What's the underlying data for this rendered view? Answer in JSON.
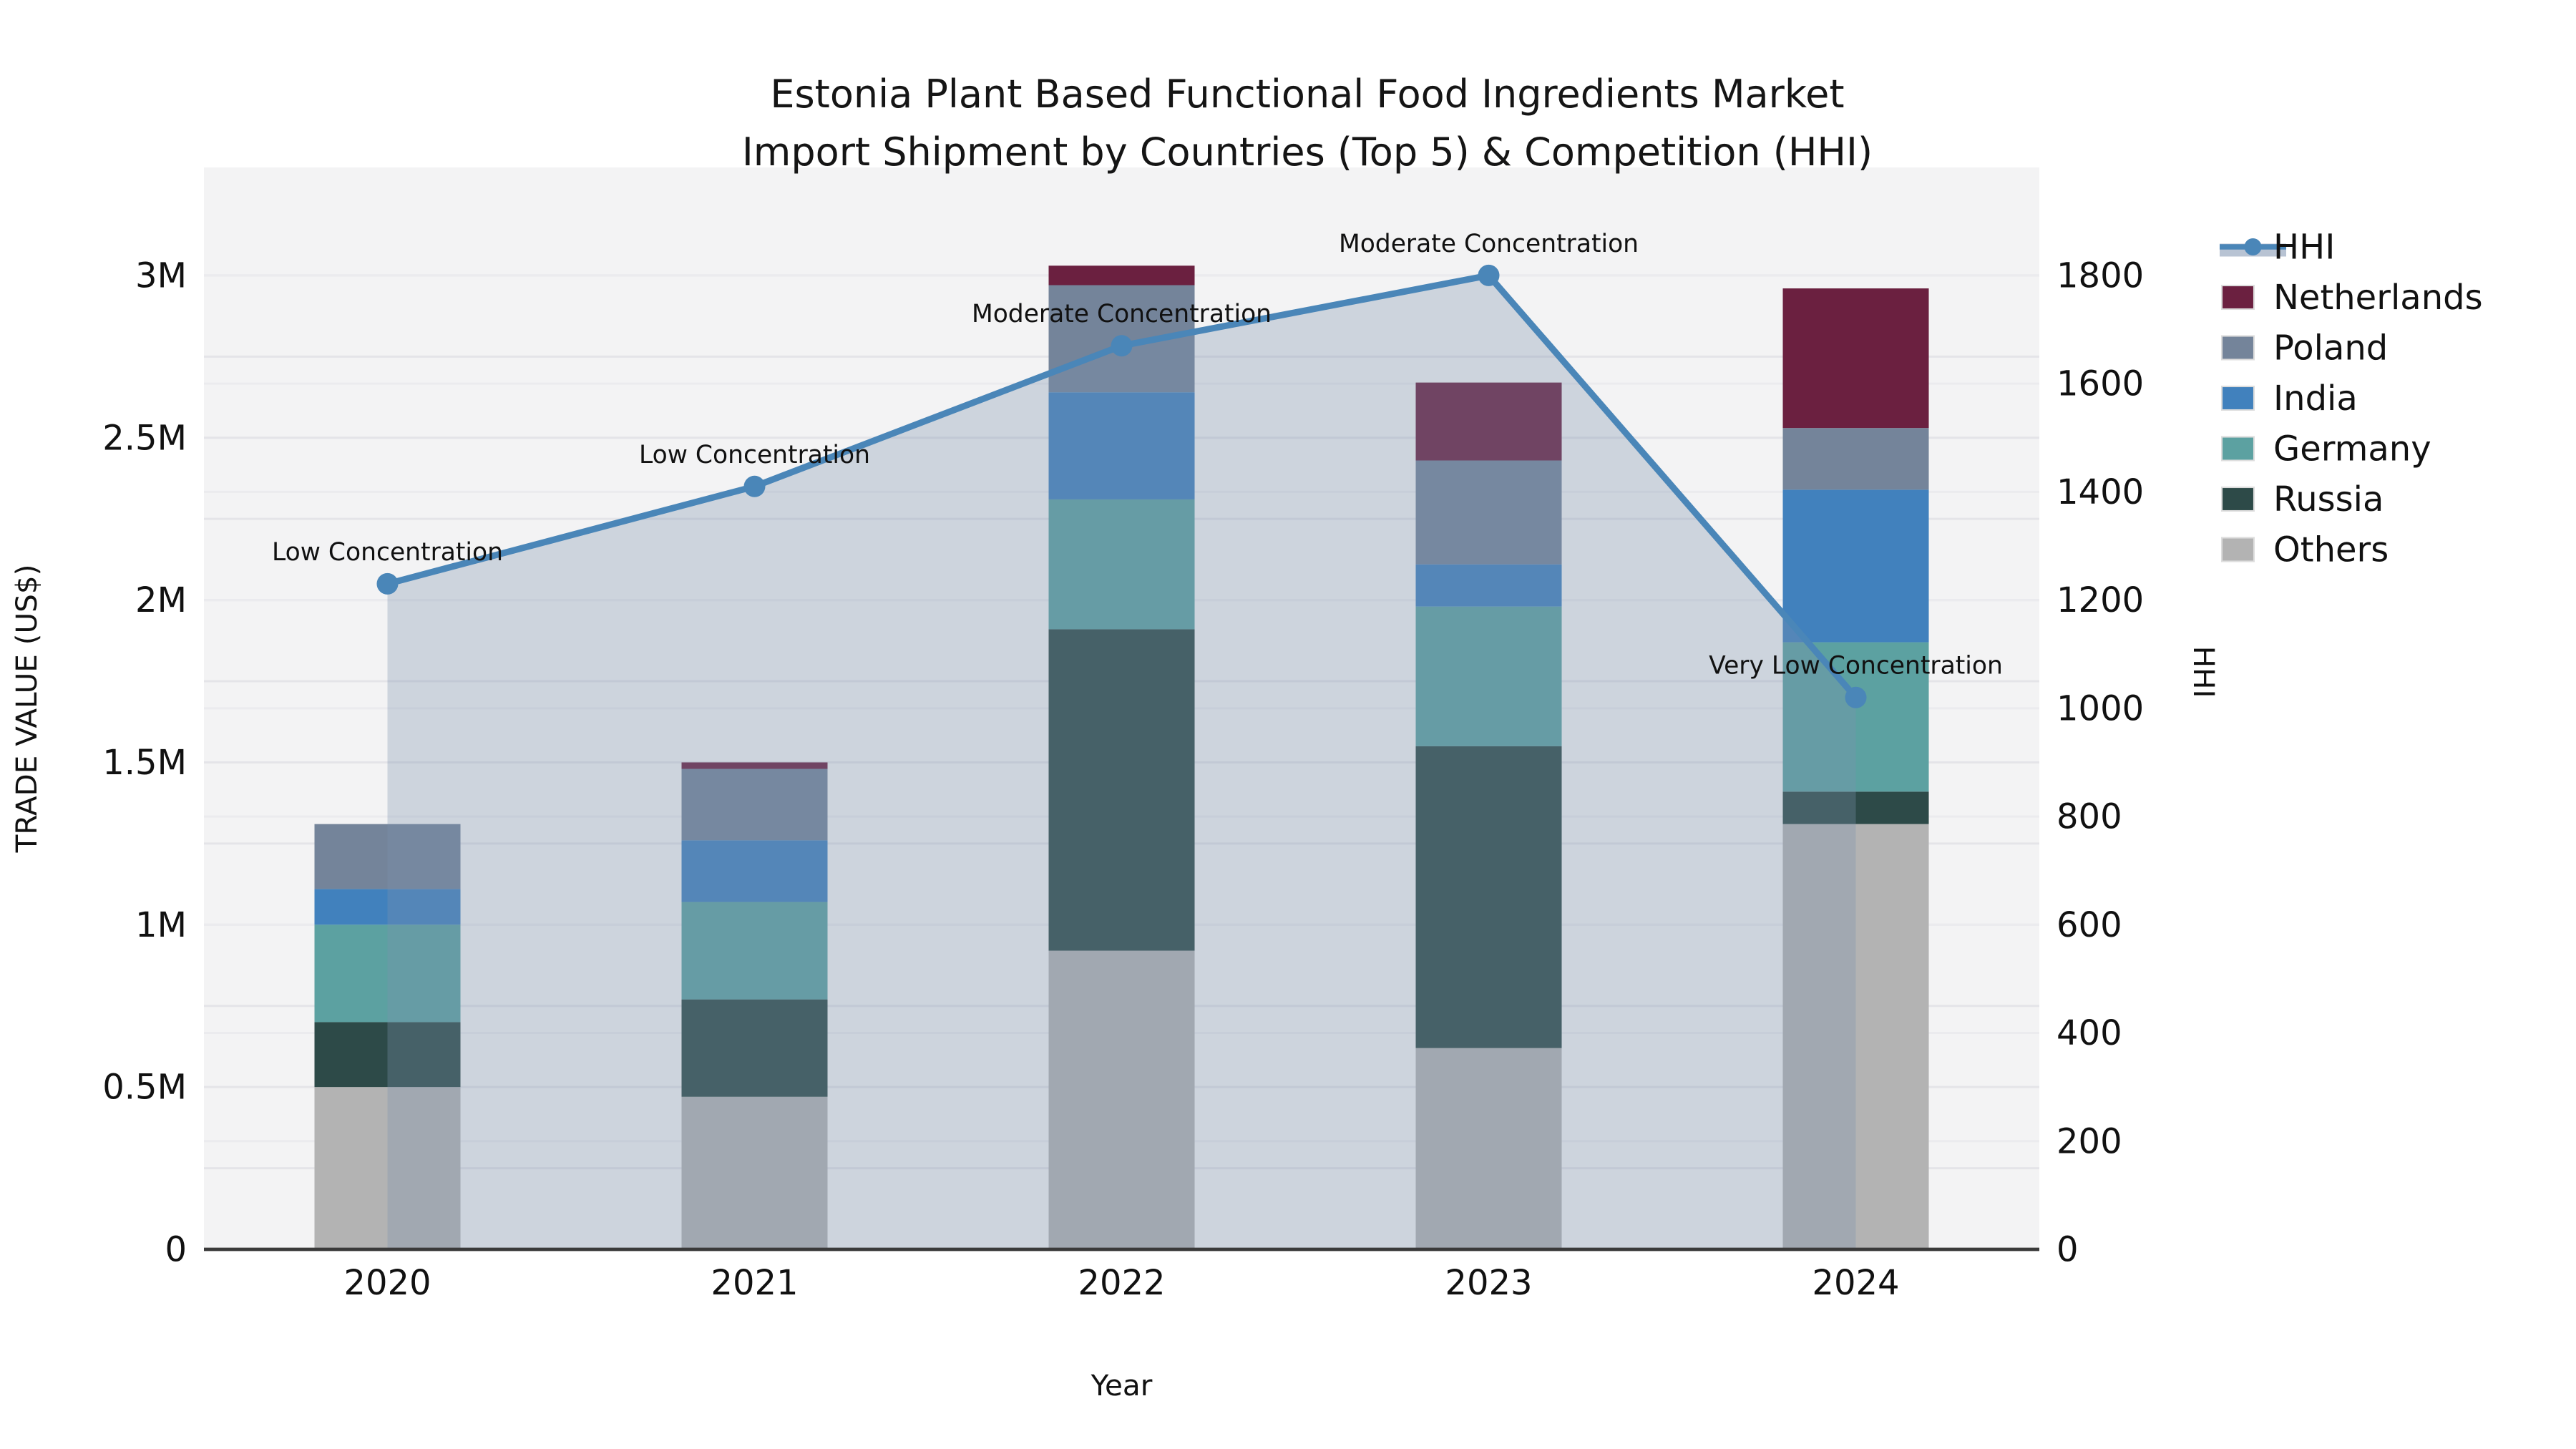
{
  "title": {
    "line1": "Estonia Plant Based Functional Food Ingredients Market",
    "line2": "Import Shipment by Countries (Top 5) & Competition (HHI)"
  },
  "axes": {
    "y_left": {
      "label": "TRADE VALUE (US$)",
      "ticks": [
        "0",
        "0.5M",
        "1M",
        "1.5M",
        "2M",
        "2.5M",
        "3M"
      ],
      "min": 0,
      "max": 3000000
    },
    "y_right": {
      "label": "HHI",
      "ticks": [
        "0",
        "200",
        "400",
        "600",
        "800",
        "1000",
        "1200",
        "1400",
        "1600",
        "1800"
      ],
      "min": 0,
      "max": 1800
    },
    "x": {
      "label": "Year",
      "categories": [
        "2020",
        "2021",
        "2022",
        "2023",
        "2024"
      ]
    }
  },
  "legend": [
    {
      "name": "HHI",
      "type": "line"
    },
    {
      "name": "Netherlands",
      "type": "swatch"
    },
    {
      "name": "Poland",
      "type": "swatch"
    },
    {
      "name": "India",
      "type": "swatch"
    },
    {
      "name": "Germany",
      "type": "swatch"
    },
    {
      "name": "Russia",
      "type": "swatch"
    },
    {
      "name": "Others",
      "type": "swatch"
    }
  ],
  "colors": {
    "netherlands": "#6b2040",
    "poland": "#74849a",
    "india": "#4181bd",
    "germany": "#5ca1a1",
    "russia": "#2d4a48",
    "others": "#b3b3b3",
    "hhi_line": "#4a86b8",
    "hhi_fill": "#7d91af",
    "hhi_fill_opacity": 0.32,
    "plot_bg": "#f3f3f4",
    "grid_minor": "#e4e4e8",
    "grid_hhi": "#ebebee",
    "axis_line": "#3a3a3a"
  },
  "chart_data": {
    "type": "combo: stacked-bar + line-area",
    "categories": [
      "2020",
      "2021",
      "2022",
      "2023",
      "2024"
    ],
    "bar_unit": "US$",
    "stack_order_bottom_to_top": [
      "Others",
      "Russia",
      "Germany",
      "India",
      "Poland",
      "Netherlands"
    ],
    "series": [
      {
        "name": "Netherlands",
        "color_key": "netherlands",
        "values": [
          0,
          20000,
          60000,
          240000,
          430000
        ]
      },
      {
        "name": "Poland",
        "color_key": "poland",
        "values": [
          200000,
          220000,
          330000,
          320000,
          190000
        ]
      },
      {
        "name": "India",
        "color_key": "india",
        "values": [
          110000,
          190000,
          330000,
          130000,
          470000
        ]
      },
      {
        "name": "Germany",
        "color_key": "germany",
        "values": [
          300000,
          300000,
          400000,
          430000,
          460000
        ]
      },
      {
        "name": "Russia",
        "color_key": "russia",
        "values": [
          200000,
          300000,
          990000,
          930000,
          100000
        ]
      },
      {
        "name": "Others",
        "color_key": "others",
        "values": [
          500000,
          470000,
          920000,
          620000,
          1310000
        ]
      }
    ],
    "bar_totals": [
      1310000,
      1500000,
      3030000,
      2670000,
      2960000
    ],
    "line": {
      "name": "HHI",
      "values": [
        1230,
        1410,
        1670,
        1800,
        1020
      ],
      "annotations": [
        "Low Concentration",
        "Low Concentration",
        "Moderate Concentration",
        "Moderate Concentration",
        "Very Low Concentration"
      ]
    },
    "title": "Estonia Plant Based Functional Food Ingredients Market Import Shipment by Countries (Top 5) & Competition (HHI)",
    "xlabel": "Year",
    "ylabel_left": "TRADE VALUE (US$)",
    "ylabel_right": "HHI",
    "ylim_left": [
      0,
      3000000
    ],
    "ylim_right": [
      0,
      1800
    ],
    "grid": true,
    "legend_position": "right"
  }
}
